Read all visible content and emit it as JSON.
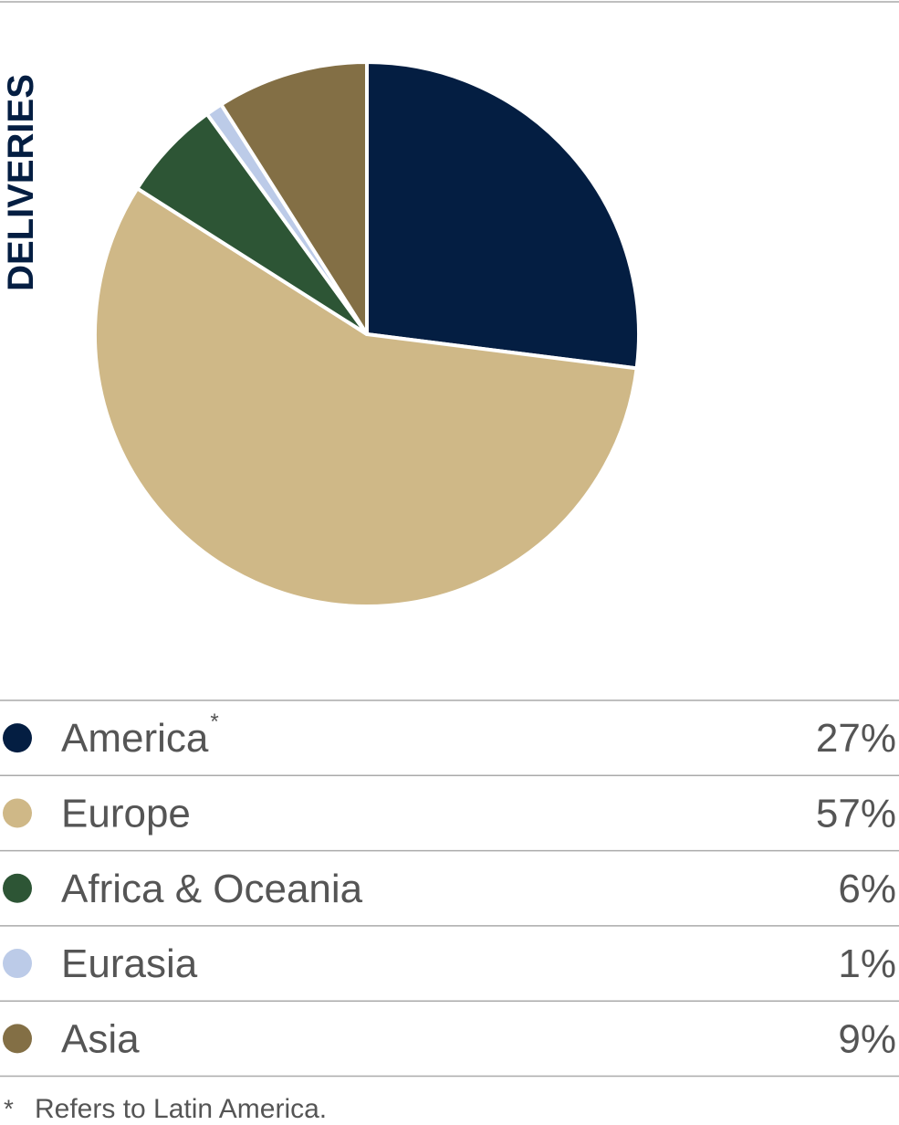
{
  "chart_data": {
    "type": "pie",
    "title": "DELIVERIES",
    "categories": [
      "America",
      "Europe",
      "Africa & Oceania",
      "Eurasia",
      "Asia"
    ],
    "values": [
      27,
      57,
      6,
      1,
      9
    ],
    "value_labels": [
      "27%",
      "57%",
      "6%",
      "1%",
      "9%"
    ],
    "colors": [
      "#041e42",
      "#cfb887",
      "#2d5535",
      "#bccbe8",
      "#836f45"
    ],
    "footnote": {
      "marker": "*",
      "text": "Refers to Latin America."
    }
  }
}
